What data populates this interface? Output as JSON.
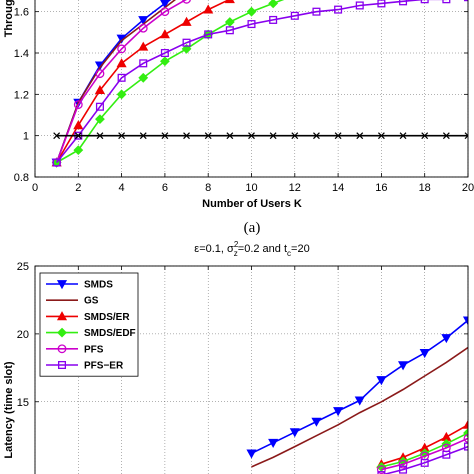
{
  "chart_data": [
    {
      "type": "line",
      "xlabel": "Number of Users K",
      "ylabel": "Through",
      "caption": "(a)",
      "xlim": [
        0,
        20
      ],
      "ylim": [
        0.8,
        1.7
      ],
      "xticks": [
        0,
        2,
        4,
        6,
        8,
        10,
        12,
        14,
        16,
        18,
        20
      ],
      "yticks": [
        0.8,
        1,
        1.2,
        1.4,
        1.6
      ],
      "ytick_labels": [
        "0.8",
        "1",
        "1.2",
        "1.4",
        "1.6"
      ],
      "grid": true,
      "series": [
        {
          "color": "#0000ff",
          "marker": "triangle-down",
          "x": [
            1,
            2,
            3,
            4,
            5,
            6,
            7
          ],
          "y": [
            0.87,
            1.16,
            1.34,
            1.47,
            1.56,
            1.64,
            1.71
          ]
        },
        {
          "color": "#8b1a1a",
          "marker": "none",
          "x": [
            1,
            2,
            3,
            4,
            5,
            6,
            7
          ],
          "y": [
            0.87,
            1.16,
            1.33,
            1.46,
            1.54,
            1.62,
            1.7
          ]
        },
        {
          "color": "#ee0000",
          "marker": "triangle-up",
          "x": [
            1,
            2,
            3,
            4,
            5,
            6,
            7,
            8,
            9,
            10
          ],
          "y": [
            0.87,
            1.05,
            1.22,
            1.35,
            1.43,
            1.49,
            1.55,
            1.61,
            1.66,
            1.71
          ]
        },
        {
          "color": "#33ee11",
          "marker": "diamond",
          "x": [
            1,
            2,
            3,
            4,
            5,
            6,
            7,
            8,
            9,
            10,
            11,
            12,
            13
          ],
          "y": [
            0.87,
            0.93,
            1.08,
            1.2,
            1.28,
            1.36,
            1.42,
            1.49,
            1.55,
            1.6,
            1.64,
            1.68,
            1.71
          ]
        },
        {
          "color": "#cc00cc",
          "marker": "circle",
          "x": [
            1,
            2,
            3,
            4,
            5,
            6,
            7,
            8
          ],
          "y": [
            0.87,
            1.15,
            1.3,
            1.42,
            1.52,
            1.6,
            1.66,
            1.71
          ]
        },
        {
          "color": "#8800ee",
          "marker": "square",
          "x": [
            1,
            2,
            3,
            4,
            5,
            6,
            7,
            8,
            9,
            10,
            11,
            12,
            13,
            14,
            15,
            16,
            17,
            18,
            19,
            20
          ],
          "y": [
            0.87,
            1.0,
            1.14,
            1.28,
            1.35,
            1.4,
            1.45,
            1.49,
            1.51,
            1.54,
            1.56,
            1.58,
            1.6,
            1.61,
            1.63,
            1.64,
            1.65,
            1.66,
            1.66,
            1.67
          ]
        },
        {
          "color": "#000000",
          "marker": "x",
          "x": [
            1,
            2,
            3,
            4,
            5,
            6,
            7,
            8,
            9,
            10,
            11,
            12,
            13,
            14,
            15,
            16,
            17,
            18,
            19,
            20
          ],
          "y": [
            1,
            1,
            1,
            1,
            1,
            1,
            1,
            1,
            1,
            1,
            1,
            1,
            1,
            1,
            1,
            1,
            1,
            1,
            1,
            1
          ]
        }
      ]
    },
    {
      "type": "line",
      "title_parts": {
        "eps": "ε=0.1, σ",
        "sub": "z",
        "sup": "2",
        "mid": "=0.2 and t",
        "sub2": "c",
        "end": "=20"
      },
      "ylabel": "Latency (time slot)",
      "xlim": [
        0,
        20
      ],
      "ylim": [
        8.5,
        25
      ],
      "yticks": [
        15,
        20,
        25
      ],
      "ytick_labels": [
        "15",
        "20",
        "25"
      ],
      "grid": true,
      "legend": "top-left",
      "series": [
        {
          "name": "SMDS",
          "color": "#0000ff",
          "marker": "triangle-down",
          "x": [
            10,
            11,
            12,
            13,
            14,
            15,
            16,
            17,
            18,
            19,
            20
          ],
          "y": [
            11.2,
            11.98,
            12.76,
            13.54,
            14.32,
            15.1,
            16.6,
            17.7,
            18.6,
            19.7,
            21.0
          ]
        },
        {
          "name": "GS",
          "color": "#8b1a1a",
          "marker": "none",
          "x": [
            10,
            11,
            12,
            13,
            14,
            15,
            16,
            17,
            18,
            19,
            20
          ],
          "y": [
            10.2,
            10.9,
            11.7,
            12.5,
            13.3,
            14.2,
            15.0,
            15.9,
            16.9,
            17.9,
            19.0
          ]
        },
        {
          "name": "SMDS/ER",
          "color": "#ee0000",
          "marker": "triangle-up",
          "x": [
            16,
            17,
            18,
            19,
            20
          ],
          "y": [
            10.4,
            10.9,
            11.6,
            12.4,
            13.3
          ]
        },
        {
          "name": "SMDS/EDF",
          "color": "#33ee11",
          "marker": "diamond",
          "x": [
            16,
            17,
            18,
            19,
            20
          ],
          "y": [
            10.2,
            10.6,
            11.2,
            11.9,
            12.7
          ]
        },
        {
          "name": "PFS",
          "color": "#cc00cc",
          "marker": "circle",
          "x": [
            16,
            17,
            18,
            19,
            20
          ],
          "y": [
            10.0,
            10.4,
            11.0,
            11.6,
            12.3
          ]
        },
        {
          "name": "PFS−ER",
          "color": "#8800ee",
          "marker": "square",
          "x": [
            16,
            17,
            18,
            19,
            20
          ],
          "y": [
            9.6,
            10.0,
            10.5,
            11.1,
            11.7
          ]
        }
      ]
    }
  ]
}
